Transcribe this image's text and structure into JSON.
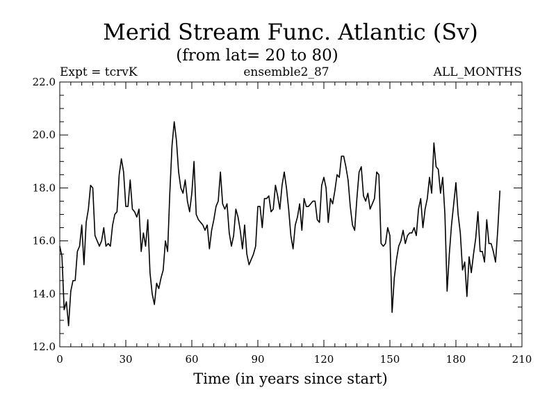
{
  "chart_data": {
    "type": "line",
    "title": "Merid Stream Func. Atlantic (Sv)",
    "subtitle": "(from lat= 20 to 80)",
    "header_left": "Expt = tcrvK",
    "header_center": "ensemble2_87",
    "header_right": "ALL_MONTHS",
    "xlabel": "Time (in years since start)",
    "ylabel": "",
    "xlim": [
      0,
      210
    ],
    "ylim": [
      12,
      22
    ],
    "x_ticks": [
      0,
      30,
      60,
      90,
      120,
      150,
      180,
      210
    ],
    "x_tick_labels": [
      "0",
      "30",
      "60",
      "90",
      "120",
      "150",
      "180",
      "210"
    ],
    "y_ticks": [
      12,
      14,
      16,
      18,
      20,
      22
    ],
    "y_tick_labels": [
      "12.0",
      "14.0",
      "16.0",
      "18.0",
      "20.0",
      "22.0"
    ],
    "x_minor_step": 5,
    "y_minor_step": 0.5,
    "grid": false,
    "line_color": "#000000",
    "series": [
      {
        "name": "Merid Stream Func. Atlantic",
        "x_start": 0,
        "x_step": 1,
        "values": [
          15.8,
          15.4,
          13.4,
          13.7,
          12.8,
          14.1,
          14.5,
          14.5,
          15.6,
          15.8,
          16.6,
          15.1,
          16.7,
          17.2,
          18.1,
          18.0,
          16.2,
          16.0,
          15.8,
          16.0,
          16.5,
          15.8,
          15.9,
          15.8,
          16.6,
          17.0,
          17.1,
          18.5,
          19.1,
          18.6,
          17.3,
          17.3,
          18.3,
          17.2,
          17.1,
          16.9,
          17.2,
          15.6,
          16.3,
          15.8,
          16.8,
          14.8,
          14.0,
          13.6,
          14.4,
          14.2,
          14.6,
          14.9,
          16.0,
          15.6,
          17.8,
          19.6,
          20.5,
          19.8,
          18.6,
          18.0,
          17.8,
          18.3,
          17.5,
          17.1,
          17.8,
          19.0,
          17.0,
          16.8,
          16.7,
          16.6,
          16.4,
          16.6,
          15.7,
          16.4,
          16.8,
          17.3,
          17.5,
          18.6,
          17.4,
          17.2,
          17.4,
          16.3,
          15.8,
          16.2,
          17.2,
          16.9,
          16.4,
          15.7,
          16.6,
          15.5,
          15.1,
          15.3,
          15.5,
          15.8,
          17.3,
          17.3,
          16.5,
          17.6,
          17.6,
          17.7,
          17.1,
          17.2,
          18.1,
          17.7,
          17.2,
          18.1,
          18.6,
          18.0,
          17.2,
          16.2,
          15.7,
          16.6,
          16.9,
          17.4,
          16.4,
          17.6,
          17.3,
          17.3,
          17.4,
          17.5,
          17.5,
          16.8,
          16.7,
          18.1,
          18.4,
          18.0,
          16.7,
          17.6,
          17.4,
          17.9,
          18.5,
          18.4,
          19.2,
          19.2,
          18.8,
          18.3,
          17.3,
          16.6,
          16.4,
          17.6,
          18.6,
          18.8,
          17.7,
          17.5,
          17.8,
          17.2,
          17.4,
          17.6,
          18.6,
          18.5,
          15.9,
          15.8,
          15.9,
          16.5,
          16.2,
          13.3,
          14.6,
          15.3,
          15.8,
          16.0,
          16.4,
          15.9,
          16.2,
          16.3,
          16.3,
          16.5,
          16.2,
          17.2,
          17.6,
          16.5,
          17.2,
          17.6,
          18.4,
          17.8,
          19.7,
          18.8,
          18.7,
          17.8,
          18.4,
          17.0,
          14.1,
          15.5,
          16.6,
          17.4,
          18.2,
          17.0,
          16.3,
          14.9,
          15.2,
          13.9,
          15.4,
          14.8,
          15.5,
          16.1,
          17.1,
          15.6,
          15.6,
          15.2,
          16.8,
          15.9,
          15.9,
          15.6,
          15.2,
          16.4,
          17.9
        ]
      }
    ]
  }
}
